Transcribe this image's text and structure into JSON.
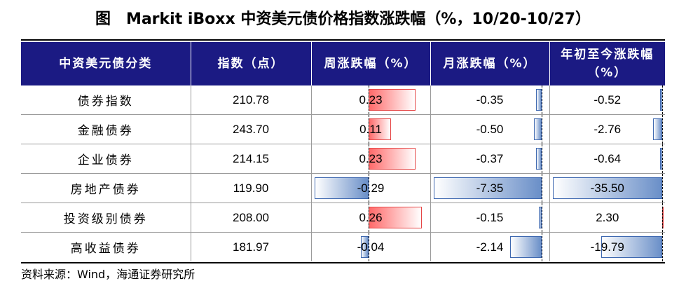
{
  "title": "图　Markit iBoxx 中资美元债价格指数涨跌幅（%，10/20-10/27）",
  "headers": [
    "中资美元债分类",
    "指数（点）",
    "周涨跌幅（%）",
    "月涨跌幅（%）",
    "年初至今涨跌幅（%）"
  ],
  "rows": [
    {
      "name": "债券指数",
      "index": "210.78",
      "week": "0.23",
      "month": "-0.35",
      "ytd": "-0.52"
    },
    {
      "name": "金融债券",
      "index": "243.70",
      "week": "0.11",
      "month": "-0.50",
      "ytd": "-2.76"
    },
    {
      "name": "企业债券",
      "index": "214.15",
      "week": "0.23",
      "month": "-0.37",
      "ytd": "-0.64"
    },
    {
      "name": "房地产债券",
      "index": "119.90",
      "week": "-0.29",
      "month": "-7.35",
      "ytd": "-35.50"
    },
    {
      "name": "投资级别债券",
      "index": "208.00",
      "week": "0.26",
      "month": "-0.15",
      "ytd": "2.30"
    },
    {
      "name": "高收益债券",
      "index": "181.97",
      "week": "-0.04",
      "month": "-2.14",
      "ytd": "-19.79"
    }
  ],
  "source": "资料来源：Wind，海通证券研究所",
  "colors": {
    "header_bg": "#1b1a83",
    "positive_bar": "#ff6a6a",
    "negative_bar": "#6a8fc8"
  }
}
